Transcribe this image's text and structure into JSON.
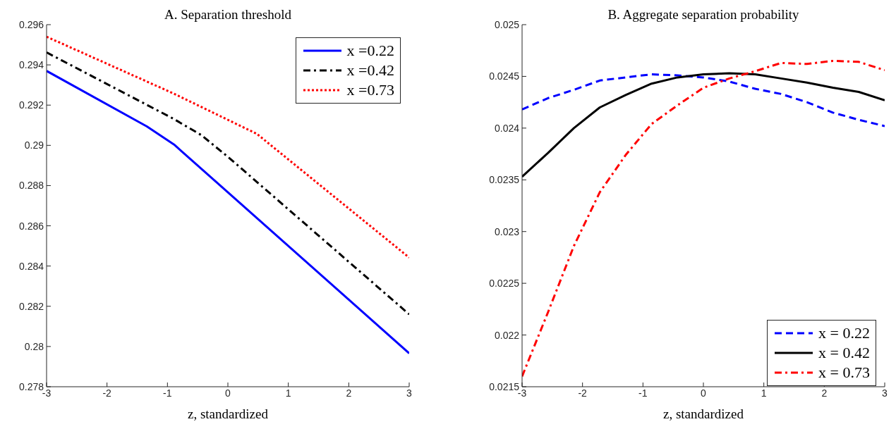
{
  "chart_data": [
    {
      "type": "line",
      "title": "A. Separation threshold",
      "xlabel": "z, standardized",
      "xlim": [
        -3,
        3
      ],
      "xticks": [
        -3,
        -2,
        -1,
        0,
        1,
        2,
        3
      ],
      "ylim": [
        0.278,
        0.296
      ],
      "yticks": [
        0.278,
        0.28,
        0.282,
        0.284,
        0.286,
        0.288,
        0.29,
        0.292,
        0.294,
        0.296
      ],
      "legend": "top right",
      "series": [
        {
          "name": "x =0.22",
          "color": "#0000ff",
          "line_style": "solid",
          "x": [
            -3,
            -1.34,
            -0.89,
            3
          ],
          "values": [
            0.2937,
            0.29094,
            0.29004,
            0.27966
          ]
        },
        {
          "name": "x =0.42",
          "color": "#000000",
          "line_style": "dashdot",
          "x": [
            -3,
            -0.9,
            -0.44,
            0.02,
            3
          ],
          "values": [
            0.29462,
            0.29132,
            0.29051,
            0.28938,
            0.2816
          ]
        },
        {
          "name": "x =0.73",
          "color": "#ff0000",
          "line_style": "dotted",
          "x": [
            -3,
            -0.9,
            0.48,
            3
          ],
          "values": [
            0.2954,
            0.29258,
            0.29057,
            0.28442
          ]
        }
      ]
    },
    {
      "type": "line",
      "title": "B. Aggregate separation probability",
      "xlabel": "z, standardized",
      "xlim": [
        -3,
        3
      ],
      "xticks": [
        -3,
        -2,
        -1,
        0,
        1,
        2,
        3
      ],
      "ylim": [
        0.0215,
        0.025
      ],
      "yticks": [
        0.0215,
        0.022,
        0.0225,
        0.023,
        0.0235,
        0.024,
        0.0245,
        0.025
      ],
      "legend": "bottom right",
      "x": [
        -3,
        -2.571,
        -2.143,
        -1.714,
        -1.286,
        -0.857,
        -0.429,
        0,
        0.429,
        0.857,
        1.286,
        1.714,
        2.143,
        2.571,
        3
      ],
      "series": [
        {
          "name": "x = 0.22",
          "color": "#0000ff",
          "line_style": "dashed",
          "values": [
            0.02418,
            0.02429,
            0.02437,
            0.02446,
            0.02449,
            0.02452,
            0.02451,
            0.02449,
            0.02445,
            0.02438,
            0.02433,
            0.02425,
            0.02415,
            0.02408,
            0.02402
          ]
        },
        {
          "name": "x = 0.42",
          "color": "#000000",
          "line_style": "solid",
          "values": [
            0.02353,
            0.02376,
            0.024,
            0.0242,
            0.02432,
            0.02443,
            0.02449,
            0.02452,
            0.02453,
            0.02452,
            0.02448,
            0.02444,
            0.02439,
            0.02435,
            0.02427
          ]
        },
        {
          "name": "x = 0.73",
          "color": "#ff0000",
          "line_style": "dashdot",
          "values": [
            0.0216,
            0.02222,
            0.02286,
            0.02338,
            0.02374,
            0.02404,
            0.02422,
            0.02439,
            0.02448,
            0.02455,
            0.02463,
            0.02462,
            0.02465,
            0.02464,
            0.02456
          ]
        }
      ]
    }
  ]
}
